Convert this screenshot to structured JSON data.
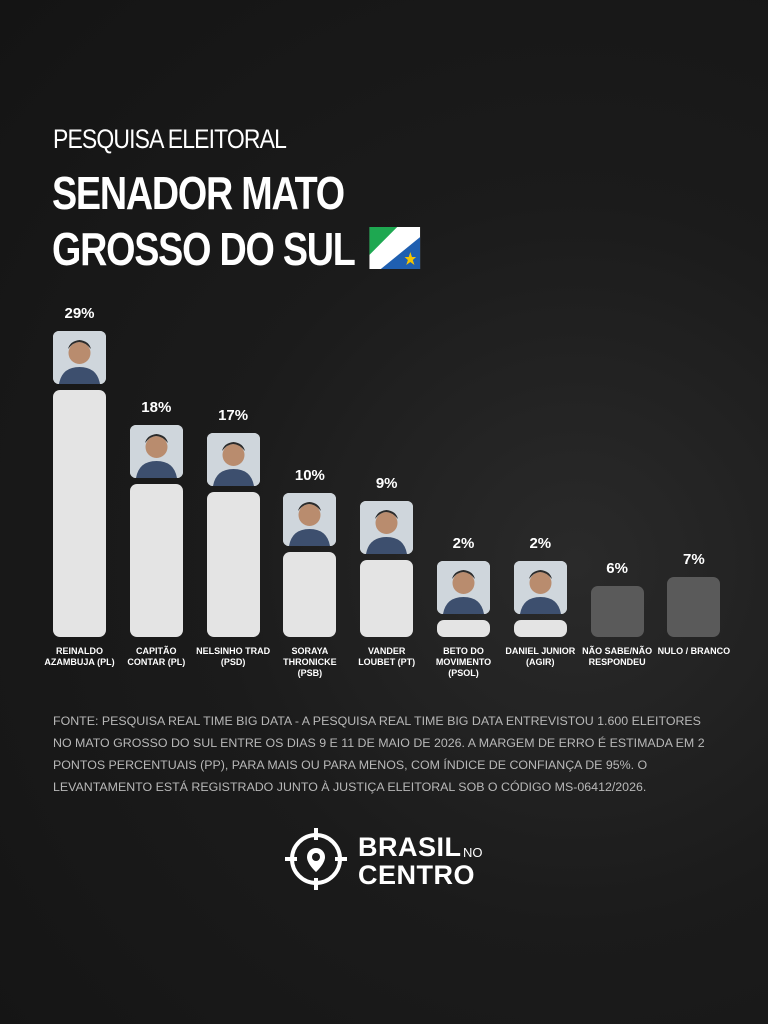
{
  "header": {
    "kicker": "PESQUISA ELEITORAL",
    "title": "SENADOR MATO GROSSO DO SUL"
  },
  "chart_data": {
    "type": "bar",
    "categories": [
      "REINALDO AZAMBUJA (PL)",
      "CAPITÃO CONTAR (PL)",
      "NELSINHO TRAD (PSD)",
      "SORAYA THRONICKE (PSB)",
      "VANDER LOUBET (PT)",
      "BETO DO MOVIMENTO (PSOL)",
      "DANIEL JUNIOR (AGIR)",
      "NÃO SABE/NÃO RESPONDEU",
      "NULO / BRANCO"
    ],
    "values": [
      29,
      18,
      17,
      10,
      9,
      2,
      2,
      6,
      7
    ],
    "value_labels": [
      "29%",
      "18%",
      "17%",
      "10%",
      "9%",
      "2%",
      "2%",
      "6%",
      "7%"
    ],
    "colors": [
      "#e4e4e4",
      "#e4e4e4",
      "#e4e4e4",
      "#e4e4e4",
      "#e4e4e4",
      "#e4e4e4",
      "#e4e4e4",
      "#5a5a5a",
      "#5a5a5a"
    ]
  },
  "source": "FONTE: PESQUISA REAL TIME BIG DATA - A PESQUISA REAL TIME BIG DATA ENTREVISTOU 1.600 ELEITORES NO MATO GROSSO DO SUL ENTRE OS DIAS 9 E 11 DE MAIO DE 2026. A MARGEM DE ERRO É ESTIMADA EM 2 PONTOS PERCENTUAIS (PP), PARA MAIS OU PARA MENOS, COM ÍNDICE DE CONFIANÇA DE 95%. O LEVANTAMENTO ESTÁ REGISTRADO JUNTO À JUSTIÇA ELEITORAL SOB O CÓDIGO MS-06412/2026.",
  "logo": {
    "line1": "BRASIL",
    "small": "NO",
    "line2": "CENTRO"
  }
}
